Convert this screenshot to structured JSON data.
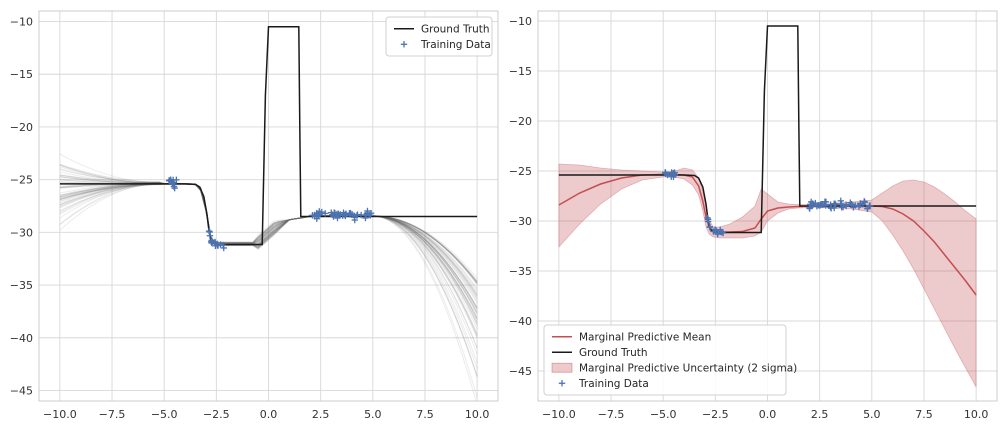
{
  "chart_data": [
    {
      "type": "line",
      "panel": "left",
      "title": "",
      "xlabel": "",
      "ylabel": "",
      "xlim": [
        -11,
        11
      ],
      "ylim": [
        -46,
        -9
      ],
      "x_ticks": [
        -10.0,
        -7.5,
        -5.0,
        -2.5,
        0.0,
        2.5,
        5.0,
        7.5,
        10.0
      ],
      "x_tick_labels": [
        "−10.0",
        "−7.5",
        "−5.0",
        "−2.5",
        "0.0",
        "2.5",
        "5.0",
        "7.5",
        "10.0"
      ],
      "y_ticks": [
        -10,
        -15,
        -20,
        -25,
        -30,
        -35,
        -40,
        -45
      ],
      "y_tick_labels": [
        "−10",
        "−15",
        "−20",
        "−25",
        "−30",
        "−35",
        "−40",
        "−45"
      ],
      "grid": true,
      "legend_position": "top-right",
      "legend": [
        {
          "label": "Ground Truth",
          "kind": "line",
          "color": "#1a1a1a"
        },
        {
          "label": "Training Data",
          "kind": "marker",
          "color": "#4c72b0"
        }
      ],
      "ground_truth": {
        "x": [
          -10,
          -4.0,
          -3.5,
          -3.3,
          -3.1,
          -2.95,
          -2.85,
          -2.75,
          -2.6,
          -2.3,
          -2.0,
          -0.3,
          -0.15,
          0.0,
          1.45,
          1.5,
          1.55,
          5,
          10
        ],
        "y": [
          -25.4,
          -25.4,
          -25.45,
          -25.7,
          -26.6,
          -28.3,
          -29.9,
          -30.8,
          -31.1,
          -31.15,
          -31.15,
          -31.15,
          -17.0,
          -10.5,
          -10.5,
          -20.0,
          -28.5,
          -28.5,
          -28.5
        ]
      },
      "samples": {
        "count": 60,
        "color": "#707070",
        "description_values": {
          "left_end_range": [
            -35.5,
            -24.5
          ],
          "right_end_range": [
            -44.0,
            -34.5
          ]
        }
      },
      "training_data": {
        "clusters": [
          {
            "x_range": [
              -4.9,
              -4.4
            ],
            "y_mean": -25.3
          },
          {
            "x_range": [
              -2.9,
              -2.1
            ],
            "y_mean": -31.1
          },
          {
            "x_range": [
              2.0,
              5.0
            ],
            "y_mean": -28.4
          }
        ]
      }
    },
    {
      "type": "line",
      "panel": "right",
      "title": "",
      "xlabel": "",
      "ylabel": "",
      "xlim": [
        -11,
        11
      ],
      "ylim": [
        -48,
        -9
      ],
      "x_ticks": [
        -10.0,
        -7.5,
        -5.0,
        -2.5,
        0.0,
        2.5,
        5.0,
        7.5,
        10.0
      ],
      "x_tick_labels": [
        "−10.0",
        "−7.5",
        "−5.0",
        "−2.5",
        "0.0",
        "2.5",
        "5.0",
        "7.5",
        "10.0"
      ],
      "y_ticks": [
        -10,
        -15,
        -20,
        -25,
        -30,
        -35,
        -40,
        -45
      ],
      "y_tick_labels": [
        "−10",
        "−15",
        "−20",
        "−25",
        "−30",
        "−35",
        "−40",
        "−45"
      ],
      "grid": true,
      "legend_position": "bottom-left",
      "legend": [
        {
          "label": "Marginal Predictive Mean",
          "kind": "line",
          "color": "#c44e52"
        },
        {
          "label": "Ground Truth",
          "kind": "line",
          "color": "#1a1a1a"
        },
        {
          "label": "Marginal Predictive Uncertainty (2 sigma)",
          "kind": "patch",
          "color": "#c44e52"
        },
        {
          "label": "Training Data",
          "kind": "marker",
          "color": "#4c72b0"
        }
      ],
      "predictive_mean": {
        "x": [
          -10,
          -9,
          -8,
          -7,
          -6,
          -5,
          -4.5,
          -4,
          -3.6,
          -3.3,
          -3.1,
          -2.95,
          -2.8,
          -2.6,
          -2.3,
          -1.8,
          -1.2,
          -0.6,
          -0.3,
          0,
          0.5,
          1,
          1.5,
          2,
          3,
          4,
          5,
          5.5,
          6,
          6.5,
          7,
          7.5,
          8,
          8.5,
          9,
          9.5,
          10
        ],
        "y": [
          -28.4,
          -27.2,
          -26.3,
          -25.7,
          -25.4,
          -25.35,
          -25.35,
          -25.4,
          -25.6,
          -26.5,
          -28.0,
          -29.6,
          -30.6,
          -31.0,
          -31.1,
          -31.1,
          -31.05,
          -30.7,
          -29.8,
          -29.0,
          -28.7,
          -28.6,
          -28.55,
          -28.5,
          -28.5,
          -28.5,
          -28.5,
          -28.55,
          -28.8,
          -29.3,
          -30.0,
          -31.0,
          -32.1,
          -33.4,
          -34.7,
          -36.0,
          -37.4
        ]
      },
      "uncertainty_band": {
        "x": [
          -10,
          -9,
          -8,
          -7,
          -6,
          -5,
          -4.5,
          -4,
          -3.6,
          -3.3,
          -3.1,
          -2.95,
          -2.8,
          -2.6,
          -2.3,
          -1.8,
          -1.2,
          -0.6,
          -0.3,
          0,
          0.5,
          1,
          1.5,
          2,
          3,
          4,
          5,
          5.5,
          6,
          6.5,
          7,
          7.5,
          8,
          8.5,
          9,
          9.5,
          10
        ],
        "upper": [
          -24.3,
          -24.4,
          -24.7,
          -24.9,
          -25.0,
          -25.1,
          -25.05,
          -24.7,
          -24.9,
          -25.7,
          -27.0,
          -28.6,
          -29.9,
          -30.6,
          -30.6,
          -30.3,
          -29.6,
          -28.5,
          -26.8,
          -27.3,
          -28.1,
          -28.3,
          -28.35,
          -28.35,
          -28.25,
          -28.1,
          -27.9,
          -27.2,
          -26.5,
          -26.0,
          -25.9,
          -26.1,
          -26.6,
          -27.3,
          -28.1,
          -29.0,
          -29.8
        ],
        "lower": [
          -32.6,
          -30.3,
          -28.3,
          -26.8,
          -25.9,
          -25.6,
          -25.6,
          -25.8,
          -26.4,
          -27.4,
          -29.0,
          -30.6,
          -31.3,
          -31.6,
          -31.7,
          -31.7,
          -31.7,
          -31.5,
          -31.1,
          -30.0,
          -29.2,
          -28.8,
          -28.7,
          -28.65,
          -28.7,
          -28.8,
          -29.1,
          -30.0,
          -31.4,
          -33.0,
          -34.8,
          -36.8,
          -38.8,
          -40.8,
          -42.8,
          -44.7,
          -46.6
        ]
      },
      "ground_truth": {
        "x": [
          -10,
          -4.0,
          -3.5,
          -3.3,
          -3.1,
          -2.95,
          -2.85,
          -2.75,
          -2.6,
          -2.3,
          -2.0,
          -0.3,
          -0.15,
          0.0,
          1.45,
          1.5,
          1.55,
          5,
          10
        ],
        "y": [
          -25.4,
          -25.4,
          -25.45,
          -25.7,
          -26.6,
          -28.3,
          -29.9,
          -30.8,
          -31.1,
          -31.15,
          -31.15,
          -31.15,
          -17.0,
          -10.5,
          -10.5,
          -20.0,
          -28.5,
          -28.5,
          -28.5
        ]
      },
      "training_data": {
        "clusters": [
          {
            "x_range": [
              -4.9,
              -4.4
            ],
            "y_mean": -25.3
          },
          {
            "x_range": [
              -2.9,
              -2.1
            ],
            "y_mean": -31.1
          },
          {
            "x_range": [
              2.0,
              5.0
            ],
            "y_mean": -28.4
          }
        ]
      }
    }
  ]
}
